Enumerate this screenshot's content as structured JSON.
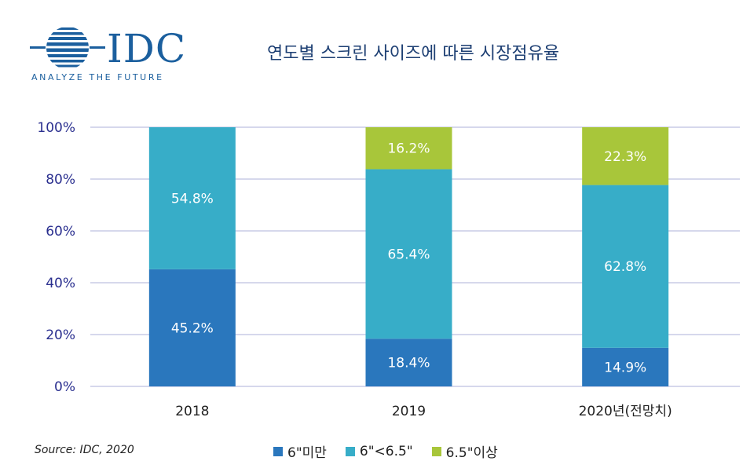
{
  "logo": {
    "word": "IDC",
    "tagline": "ANALYZE THE FUTURE",
    "brand_color": "#1b5f9e"
  },
  "source": "Source: IDC, 2020",
  "chart_data": {
    "type": "bar",
    "stacked": true,
    "title": "연도별 스크린 사이즈에 따른 시장점유율",
    "categories": [
      "2018",
      "2019",
      "2020년(전망치)"
    ],
    "series": [
      {
        "name": "6\"미만",
        "color": "#2a77bd",
        "values": [
          45.2,
          18.4,
          14.9
        ],
        "labels": [
          "45.2%",
          "18.4%",
          "14.9%"
        ]
      },
      {
        "name": "6\"<6.5\"",
        "color": "#37adc8",
        "values": [
          54.8,
          65.4,
          62.8
        ],
        "labels": [
          "54.8%",
          "65.4%",
          "62.8%"
        ]
      },
      {
        "name": "6.5\"이상",
        "color": "#a8c63a",
        "values": [
          0,
          16.2,
          22.3
        ],
        "labels": [
          "",
          "16.2%",
          "22.3%"
        ]
      }
    ],
    "ylim": [
      0,
      100
    ],
    "yticks": [
      0,
      20,
      40,
      60,
      80,
      100
    ],
    "ytick_labels": [
      "0%",
      "20%",
      "40%",
      "60%",
      "80%",
      "100%"
    ],
    "grid": true,
    "legend_position": "bottom"
  }
}
